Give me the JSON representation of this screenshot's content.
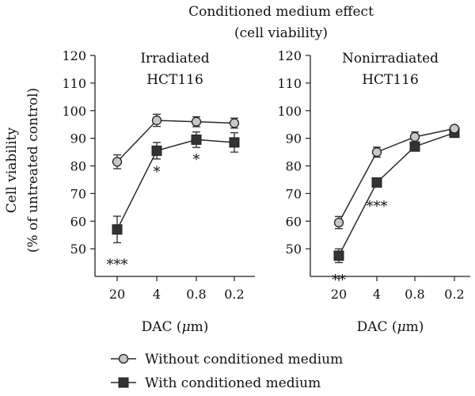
{
  "figure": {
    "title_line1": "Conditioned medium effect",
    "title_line2": "(cell viability)",
    "ylabel_line1": "Cell viability",
    "ylabel_line2": "(% of untreated control)"
  },
  "legend": [
    {
      "label": "Without conditioned medium",
      "marker": "circle",
      "fill": "#c8c8c8"
    },
    {
      "label": "With conditioned medium",
      "marker": "square",
      "fill": "#333333"
    }
  ],
  "chart_data": [
    {
      "type": "line",
      "title_line1": "Irradiated",
      "title_line2": "HCT116",
      "xlabel_prefix": "DAC (",
      "xlabel_mu": "μ",
      "xlabel_suffix": "m)",
      "categories": [
        "20",
        "4",
        "0.8",
        "0.2"
      ],
      "ylim": [
        40,
        120
      ],
      "yticks": [
        50,
        60,
        70,
        80,
        90,
        100,
        110,
        120
      ],
      "series": [
        {
          "name": "Without conditioned medium",
          "marker": "circle",
          "values": [
            81.5,
            96.5,
            96,
            95.5
          ],
          "errors": [
            2.5,
            2.2,
            1.8,
            1.8
          ]
        },
        {
          "name": "With conditioned medium",
          "marker": "square",
          "values": [
            57,
            85.5,
            89.5,
            88.5
          ],
          "errors": [
            4.8,
            3.0,
            2.8,
            3.5
          ]
        }
      ],
      "annotations": [
        {
          "category_index": 0,
          "text": "***",
          "y": 45.5
        },
        {
          "category_index": 1,
          "text": "*",
          "y": 79
        },
        {
          "category_index": 2,
          "text": "*",
          "y": 83.5
        }
      ]
    },
    {
      "type": "line",
      "title_line1": "Nonirradiated",
      "title_line2": "HCT116",
      "xlabel_prefix": "DAC (",
      "xlabel_mu": "μ",
      "xlabel_suffix": "m)",
      "categories": [
        "20",
        "4",
        "0.8",
        "0.2"
      ],
      "ylim": [
        40,
        120
      ],
      "yticks": [
        50,
        60,
        70,
        80,
        90,
        100,
        110,
        120
      ],
      "series": [
        {
          "name": "Without conditioned medium",
          "marker": "circle",
          "values": [
            59.5,
            85,
            90.5,
            93.5
          ],
          "errors": [
            2.2,
            1.8,
            1.8,
            1.0
          ]
        },
        {
          "name": "With conditioned medium",
          "marker": "square",
          "values": [
            47.5,
            74,
            87,
            92
          ],
          "errors": [
            2.5,
            1.2,
            1.2,
            1.0
          ]
        }
      ],
      "annotations": [
        {
          "category_index": 0,
          "text": "**",
          "y": 39.8
        },
        {
          "category_index": 1,
          "text": "***",
          "y": 66.5
        }
      ]
    }
  ]
}
